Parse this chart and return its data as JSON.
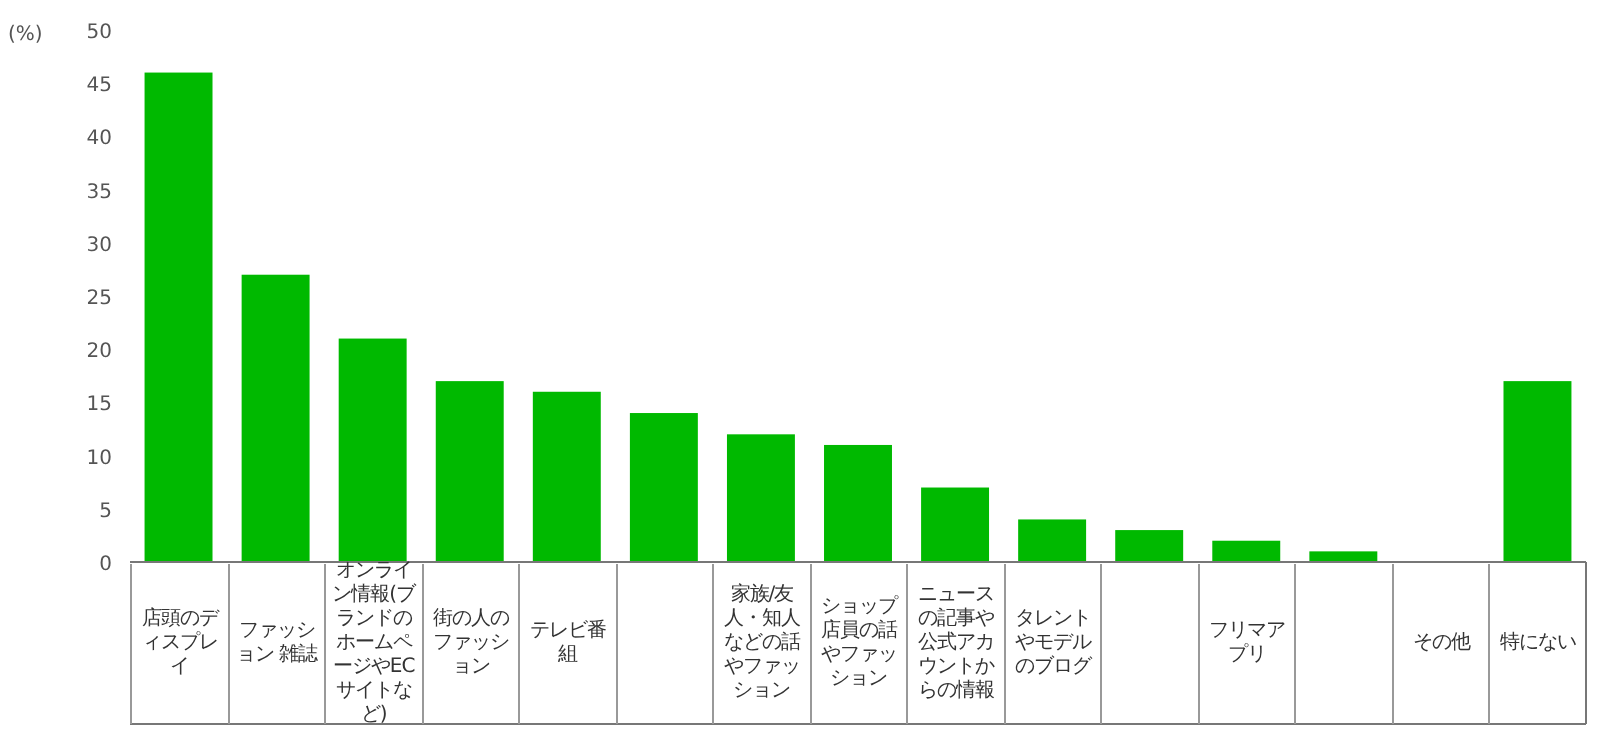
{
  "chart_data": {
    "type": "bar",
    "ylabel": "(%)",
    "categories": [
      "店頭のディスプレイ",
      "ファッション 雑誌",
      "オンライン情報(ブランドのホームページやECサイトなど)",
      "街の人のファッション",
      "テレビ番組",
      null,
      "家族/友人・知人などの話やファッション",
      "ショップ店員の話やファッション",
      "ニュースの記事や公式アカウントからの情報",
      "タレントやモデルのブログ",
      null,
      "フリマアプリ",
      null,
      "その他",
      "特にない"
    ],
    "values": [
      46,
      27,
      21,
      17,
      16,
      14,
      12,
      11,
      7,
      4,
      3,
      2,
      1,
      0,
      17
    ],
    "color": "#00b900",
    "ylim": [
      0,
      50
    ],
    "yticks": [
      0,
      5,
      10,
      15,
      20,
      25,
      30,
      35,
      40,
      45,
      50
    ],
    "grid": false
  }
}
